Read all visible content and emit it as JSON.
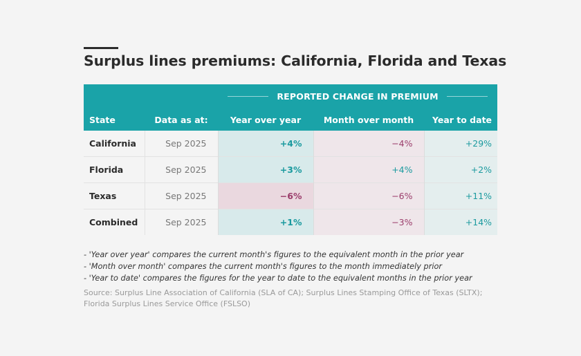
{
  "title": "Surplus lines premiums: California, Florida and Texas",
  "table": {
    "group_header": "REPORTED CHANGE IN PREMIUM",
    "columns": {
      "state": "State",
      "date": "Data as at:",
      "yoy": "Year over year",
      "mom": "Month over month",
      "ytd": "Year to date"
    },
    "rows": [
      {
        "state": "California",
        "date": "Sep 2025",
        "yoy": "+4%",
        "mom": "−4%",
        "ytd": "+29%"
      },
      {
        "state": "Florida",
        "date": "Sep 2025",
        "yoy": "+3%",
        "mom": "+4%",
        "ytd": "+2%"
      },
      {
        "state": "Texas",
        "date": "Sep 2025",
        "yoy": "−6%",
        "mom": "−6%",
        "ytd": "+11%"
      },
      {
        "state": "Combined",
        "date": "Sep 2025",
        "yoy": "+1%",
        "mom": "−3%",
        "ytd": "+14%"
      }
    ]
  },
  "notes": [
    "- 'Year over year' compares the current month's figures to the equivalent month in the prior year",
    "- 'Month over month' compares the current month's figures to the month immediately prior",
    "- 'Year to date' compares the figures for the year to date to the equivalent months in the prior year"
  ],
  "source": "Source: Surplus Line Association of California (SLA of CA); Surplus Lines Stamping Office of Texas (SLTX); Florida Surplus Lines Service Office (FSLSO)",
  "colors": {
    "header_teal": "#1aa3a8",
    "positive": "#1b9a9f",
    "negative": "#9b3d6b"
  }
}
